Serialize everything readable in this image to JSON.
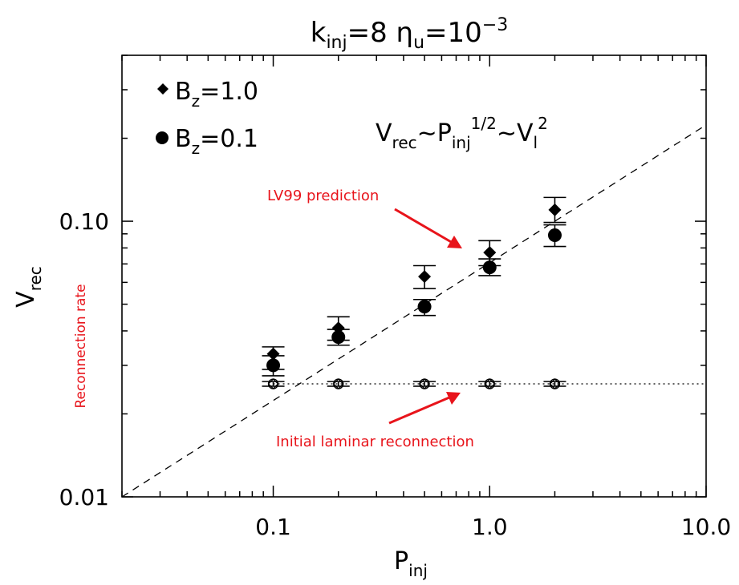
{
  "title": {
    "base": "k",
    "sub1": "inj",
    "mid": "=8  η",
    "sub2": "u",
    "eq": "=10",
    "sup": "−3"
  },
  "x_label": {
    "base": "P",
    "sub": "inj"
  },
  "y_label": {
    "base": "V",
    "sub": "rec"
  },
  "legend": [
    {
      "marker": "diamond",
      "base": "B",
      "sub": "z",
      "value": "=1.0"
    },
    {
      "marker": "circle",
      "base": "B",
      "sub": "z",
      "value": "=0.1"
    }
  ],
  "formula": {
    "a": "V",
    "a_sub": "rec",
    "b": "∼P",
    "b_sub": "inj",
    "b_sup": "1/2",
    "c": "∼V",
    "c_sub": "l",
    "c_sup": "2"
  },
  "annotations": {
    "lv99": "LV99 prediction",
    "laminar": "Initial laminar reconnection",
    "rate": "Reconnection rate",
    "color": "#e8141b"
  },
  "chart_data": {
    "type": "scatter",
    "x_scale": "log",
    "y_scale": "log",
    "xlim": [
      0.02,
      10.0
    ],
    "ylim": [
      0.01,
      0.4
    ],
    "x_tick_labels": [
      "0.1",
      "1.0",
      "10.0"
    ],
    "x_tick_values": [
      0.1,
      1.0,
      10.0
    ],
    "y_tick_labels": [
      "0.01",
      "0.10"
    ],
    "y_tick_values": [
      0.01,
      0.1
    ],
    "series": [
      {
        "name": "B_z=1.0",
        "marker": "filled-diamond",
        "x": [
          0.1,
          0.2,
          0.5,
          1.0,
          2.0
        ],
        "y": [
          0.033,
          0.041,
          0.063,
          0.077,
          0.11
        ],
        "y_err_low": [
          0.029,
          0.037,
          0.057,
          0.069,
          0.099
        ],
        "y_err_high": [
          0.035,
          0.045,
          0.069,
          0.085,
          0.122
        ]
      },
      {
        "name": "B_z=0.1",
        "marker": "filled-circle",
        "x": [
          0.1,
          0.2,
          0.5,
          1.0,
          2.0
        ],
        "y": [
          0.03,
          0.038,
          0.049,
          0.068,
          0.089
        ],
        "y_err_low": [
          0.0275,
          0.0355,
          0.0455,
          0.0635,
          0.081
        ],
        "y_err_high": [
          0.0325,
          0.0405,
          0.052,
          0.073,
          0.097
        ]
      },
      {
        "name": "initial laminar",
        "marker": "open-diamond-circle",
        "x": [
          0.1,
          0.2,
          0.5,
          1.0,
          2.0
        ],
        "y": [
          0.0257,
          0.0257,
          0.0257,
          0.0257,
          0.0257
        ],
        "y_err_low": [
          0.0252,
          0.0252,
          0.0252,
          0.0252,
          0.0252
        ],
        "y_err_high": [
          0.0262,
          0.0262,
          0.0262,
          0.0262,
          0.0262
        ]
      }
    ],
    "reference_lines": [
      {
        "style": "dashed",
        "x": [
          0.02,
          10.0
        ],
        "y": [
          0.01,
          0.2236
        ],
        "label": "V_rec ∼ P_inj^{1/2}"
      },
      {
        "style": "dotted",
        "x": [
          0.1,
          10.0
        ],
        "y": [
          0.0257,
          0.0257
        ],
        "label": "initial laminar level"
      }
    ]
  }
}
